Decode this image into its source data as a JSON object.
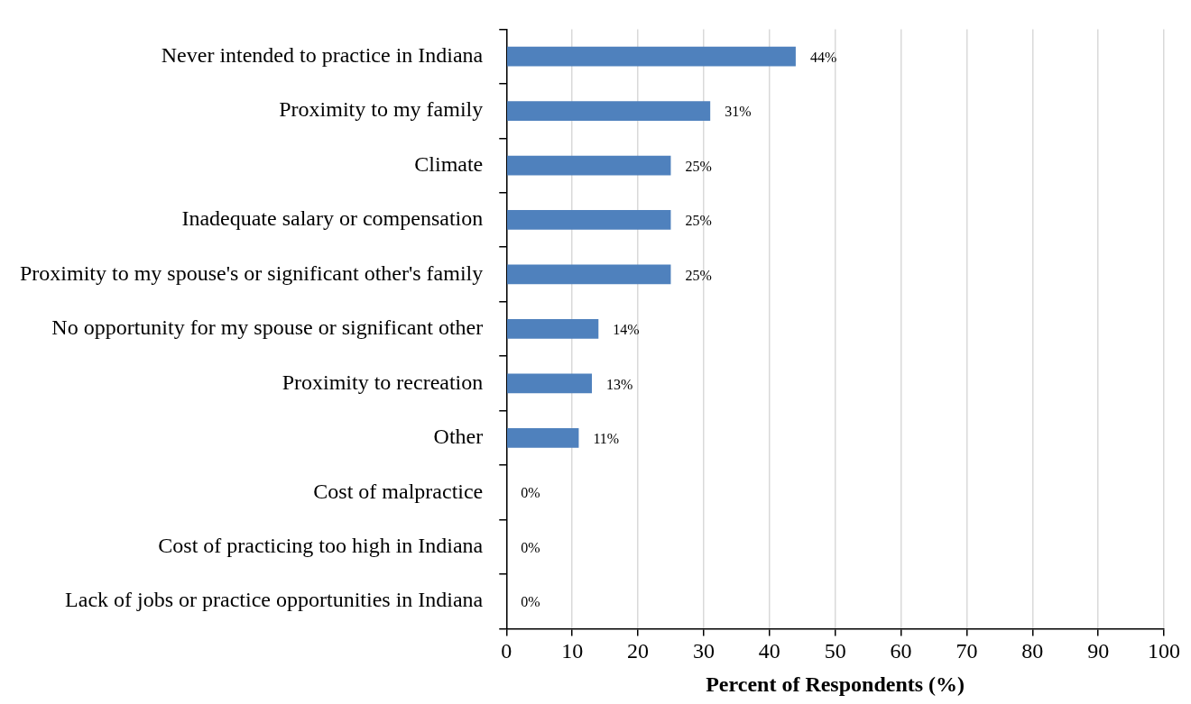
{
  "chart_data": {
    "type": "bar",
    "orientation": "horizontal",
    "categories": [
      "Never intended to practice in Indiana",
      "Proximity to my family",
      "Climate",
      "Inadequate salary or compensation",
      "Proximity to my spouse's or significant other's family",
      "No opportunity for my spouse or significant other",
      "Proximity to recreation",
      "Other",
      "Cost of malpractice",
      "Cost of practicing too high in Indiana",
      "Lack of jobs or practice opportunities in Indiana"
    ],
    "values": [
      44,
      31,
      25,
      25,
      25,
      14,
      13,
      11,
      0,
      0,
      0
    ],
    "value_labels": [
      "44%",
      "31%",
      "25%",
      "25%",
      "25%",
      "14%",
      "13%",
      "11%",
      "0%",
      "0%",
      "0%"
    ],
    "color": "#4f81bd",
    "xlabel": "Percent of Respondents (%)",
    "xlim": [
      0,
      100
    ],
    "xticks": [
      0,
      10,
      20,
      30,
      40,
      50,
      60,
      70,
      80,
      90,
      100
    ],
    "grid": "x",
    "legend": false
  }
}
